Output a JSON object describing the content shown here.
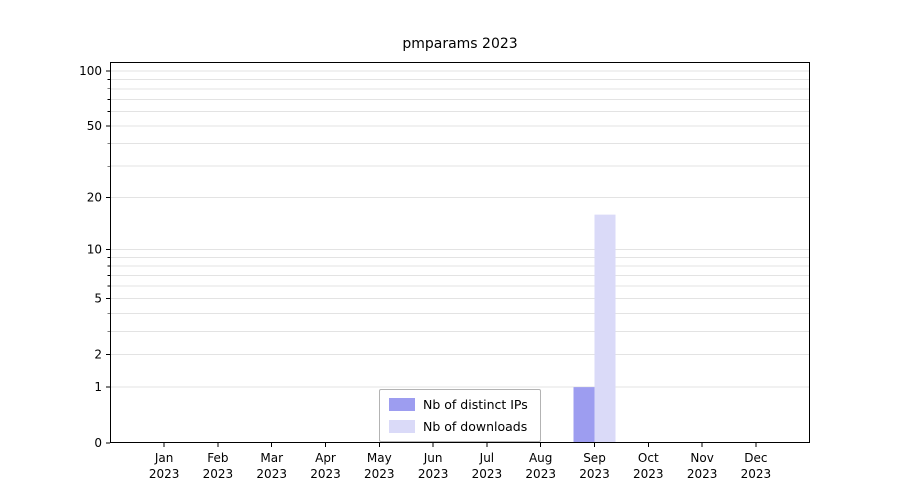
{
  "chart_data": {
    "type": "bar",
    "title": "pmparams 2023",
    "categories": [
      "Jan",
      "Feb",
      "Mar",
      "Apr",
      "May",
      "Jun",
      "Jul",
      "Aug",
      "Sep",
      "Oct",
      "Nov",
      "Dec"
    ],
    "year": "2023",
    "series": [
      {
        "name": "Nb of distinct IPs",
        "color": "#9d9df0",
        "values": [
          0,
          0,
          0,
          0,
          0,
          0,
          0,
          0,
          1,
          0,
          0,
          0
        ]
      },
      {
        "name": "Nb of downloads",
        "color": "#dadaf8",
        "values": [
          0,
          0,
          0,
          0,
          0,
          0,
          0,
          0,
          16,
          0,
          0,
          0
        ]
      }
    ],
    "y_axis": {
      "scale": "log1p",
      "ticks": [
        0,
        1,
        2,
        5,
        10,
        20,
        50,
        100
      ],
      "gridlines": [
        1,
        2,
        3,
        4,
        5,
        6,
        7,
        8,
        9,
        10,
        20,
        30,
        40,
        50,
        60,
        70,
        80,
        90,
        100
      ],
      "max": 112
    },
    "x_axis": {
      "gridlines": false
    },
    "legend": {
      "position": "bottom-center"
    },
    "colors": {
      "grid": "#e3e3e3",
      "spine": "#000000",
      "text": "#000000"
    }
  }
}
